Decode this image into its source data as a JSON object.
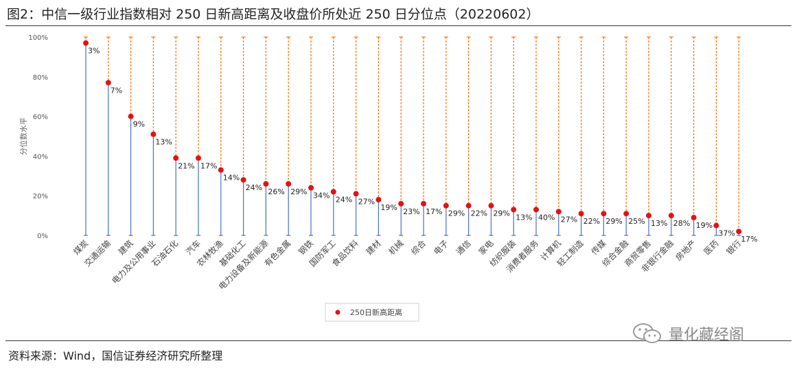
{
  "title": "图2：中信一级行业指数相对 250 日新高距离及收盘价所处近 250 日分位点（20220602）",
  "source": "资料来源：Wind，国信证券经济研究所整理",
  "watermark": "量化藏经阁",
  "colors": {
    "point": "#e81010",
    "stem": "#4472c4",
    "dash": "#ff6a00"
  },
  "chart_data": {
    "type": "scatter",
    "ylabel": "分位数水平",
    "ylim": [
      0,
      100
    ],
    "yticks": [
      "0%",
      "20%",
      "40%",
      "60%",
      "80%",
      "100%"
    ],
    "legend": {
      "label": "250日新高距离",
      "placement": "bottom-center"
    },
    "categories": [
      "煤炭",
      "交通运输",
      "建筑",
      "电力及公用事业",
      "石油石化",
      "汽车",
      "农林牧渔",
      "基础化工",
      "电力设备及新能源",
      "有色金属",
      "钢铁",
      "国防军工",
      "食品饮料",
      "建材",
      "机械",
      "综合",
      "电子",
      "通信",
      "家电",
      "纺织服装",
      "消费者服务",
      "计算机",
      "轻工制造",
      "传媒",
      "综合金融",
      "商贸零售",
      "非银行金融",
      "房地产",
      "医药",
      "银行"
    ],
    "series": [
      {
        "name": "250日新高距离",
        "values": [
          97,
          77,
          60,
          51,
          39,
          39,
          33,
          28,
          26,
          26,
          24,
          22,
          21,
          18,
          16,
          16,
          15,
          15,
          15,
          13,
          13,
          12,
          11,
          11,
          11,
          10,
          10,
          9,
          5,
          2
        ],
        "labels": [
          "3%",
          "7%",
          "9%",
          "13%",
          "21%",
          "17%",
          "14%",
          "24%",
          "26%",
          "29%",
          "34%",
          "24%",
          "27%",
          "19%",
          "23%",
          "17%",
          "29%",
          "22%",
          "29%",
          "13%",
          "40%",
          "27%",
          "22%",
          "29%",
          "25%",
          "13%",
          "28%",
          "19%",
          "37%",
          "17%"
        ]
      }
    ]
  }
}
